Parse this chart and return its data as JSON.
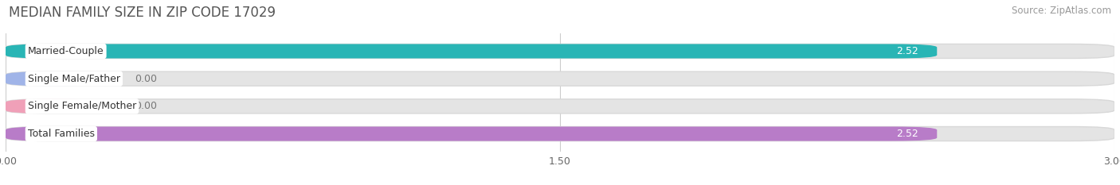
{
  "title": "MEDIAN FAMILY SIZE IN ZIP CODE 17029",
  "source": "Source: ZipAtlas.com",
  "categories": [
    "Married-Couple",
    "Single Male/Father",
    "Single Female/Mother",
    "Total Families"
  ],
  "values": [
    2.52,
    0.0,
    0.0,
    2.52
  ],
  "bar_colors": [
    "#29b5b5",
    "#a0b4e8",
    "#f0a0b8",
    "#b87cc8"
  ],
  "track_color": "#e4e4e4",
  "track_shadow_color": "#d0d0d0",
  "xlim": [
    0,
    3.0
  ],
  "xticks": [
    0.0,
    1.5,
    3.0
  ],
  "xtick_labels": [
    "0.00",
    "1.50",
    "3.00"
  ],
  "value_label_color": "#ffffff",
  "value_label_color_zero": "#777777",
  "zero_stub_values": [
    0.3,
    0.3
  ],
  "bar_height": 0.52,
  "figsize": [
    14.06,
    2.33
  ],
  "dpi": 100,
  "background_color": "#ffffff",
  "title_fontsize": 12,
  "source_fontsize": 8.5,
  "label_fontsize": 9,
  "value_fontsize": 9,
  "tick_fontsize": 9,
  "grid_color": "#cccccc"
}
